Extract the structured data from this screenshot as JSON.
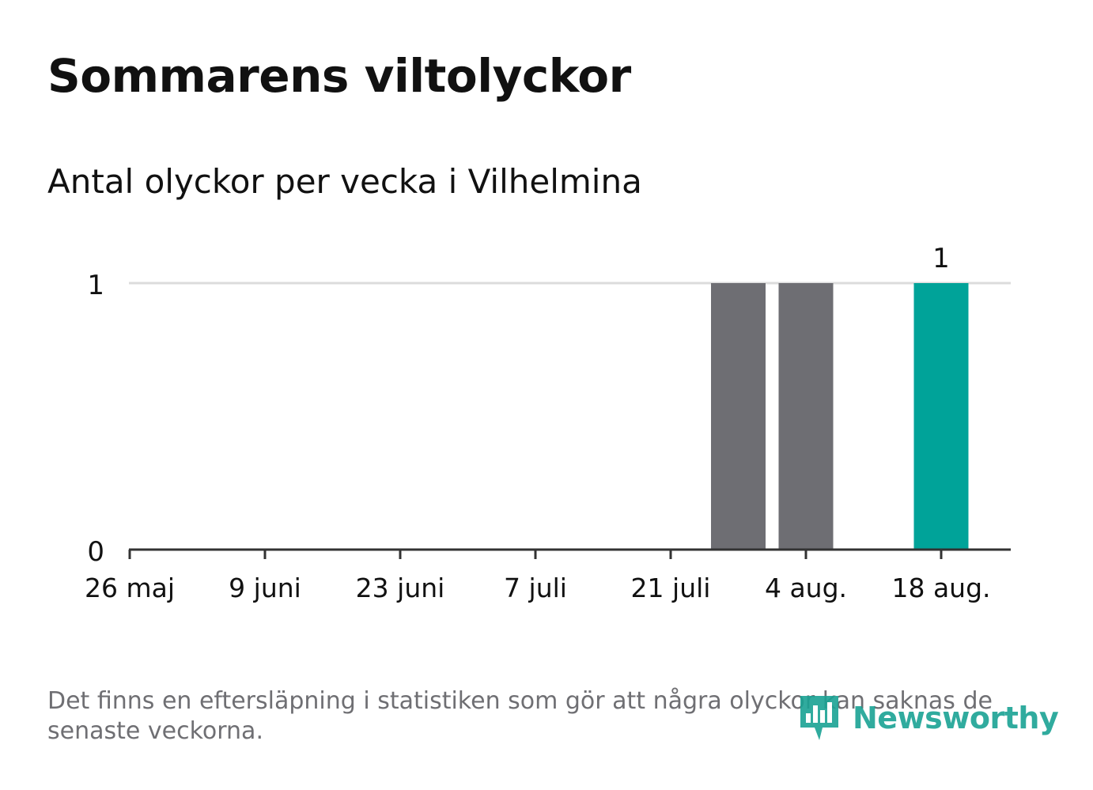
{
  "title": "Sommarens viltolyckor",
  "subtitle": "Antal olyckor per vecka i Vilhelmina",
  "footnote": "Det finns en eftersläpning i statistiken som gör att några olyckor kan saknas de senaste veckorna.",
  "brand": {
    "name": "Newsworthy",
    "icon": "newsworthy-logo-icon"
  },
  "colors": {
    "bar_default": "#6e6e73",
    "bar_highlight": "#00a399",
    "gridline": "#dcdcdc",
    "axis": "#333333",
    "text": "#111111",
    "muted": "#6f6f73"
  },
  "chart_data": {
    "type": "bar",
    "x_tick_labels": [
      "26 maj",
      "9 juni",
      "23 juni",
      "7 juli",
      "21 juli",
      "4 aug.",
      "18 aug."
    ],
    "x": [
      "v22",
      "v23",
      "v24",
      "v25",
      "v26",
      "v27",
      "v28",
      "v29",
      "v30",
      "v31",
      "v32",
      "v33",
      "v34"
    ],
    "values": [
      0,
      0,
      0,
      0,
      0,
      0,
      0,
      0,
      0,
      1,
      1,
      0,
      1
    ],
    "highlight_index": 12,
    "data_labels": [
      {
        "index": 12,
        "text": "1"
      }
    ],
    "y_ticks": [
      0,
      1
    ],
    "ylim": [
      0,
      1
    ],
    "grid": true,
    "legend": "none"
  }
}
